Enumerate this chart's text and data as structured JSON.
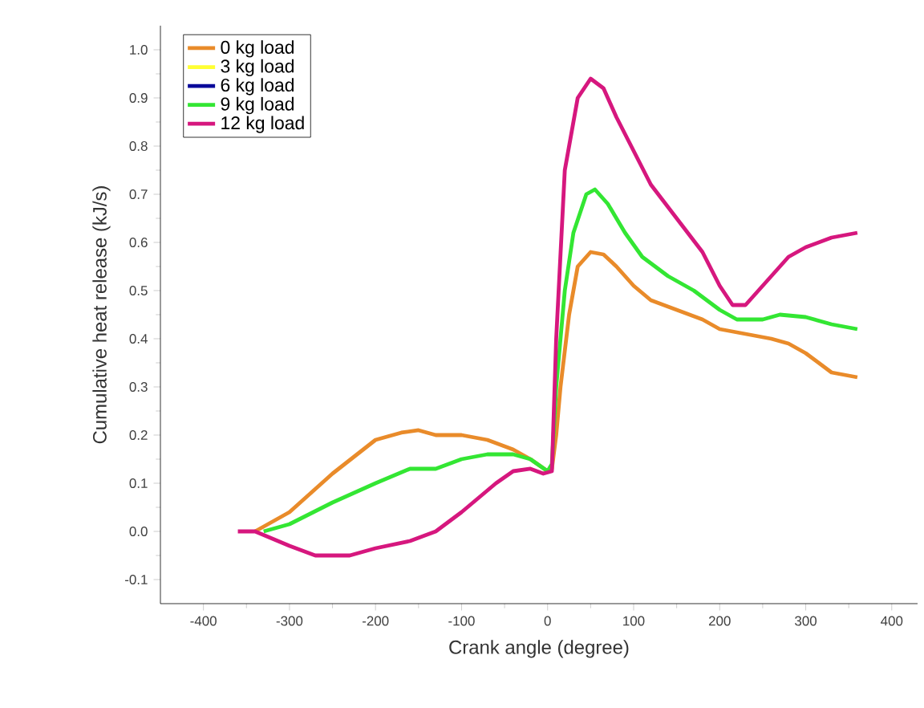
{
  "chart_data": {
    "type": "line",
    "xlabel": "Crank angle (degree)",
    "ylabel": "Cumulative heat release (kJ/s)",
    "xlim": [
      -450,
      430
    ],
    "ylim": [
      -0.15,
      1.05
    ],
    "xticks": [
      -400,
      -300,
      -200,
      -100,
      0,
      100,
      200,
      300,
      400
    ],
    "yticks": [
      {
        "value": -0.1,
        "label": "-0.1"
      },
      {
        "value": 0,
        "label": "0.0"
      },
      0.1,
      0.2,
      0.3,
      0.4,
      0.5,
      0.6,
      0.7,
      0.8,
      0.9,
      {
        "value": 1,
        "label": "1.0"
      }
    ],
    "grid": false,
    "legend": "top left",
    "marker": "none",
    "line_style": "solid",
    "series": [
      {
        "name": "0 kg load",
        "color": "#e98b2a",
        "x": [
          -340,
          -300,
          -250,
          -200,
          -170,
          -150,
          -130,
          -100,
          -70,
          -40,
          -20,
          0,
          5,
          10,
          15,
          25,
          35,
          50,
          65,
          80,
          100,
          120,
          150,
          180,
          200,
          230,
          260,
          280,
          300,
          330,
          360
        ],
        "values": [
          0,
          0.04,
          0.12,
          0.19,
          0.205,
          0.21,
          0.2,
          0.2,
          0.19,
          0.17,
          0.15,
          0.125,
          0.13,
          0.2,
          0.3,
          0.45,
          0.55,
          0.58,
          0.575,
          0.55,
          0.51,
          0.48,
          0.46,
          0.44,
          0.42,
          0.41,
          0.4,
          0.39,
          0.37,
          0.33,
          0.32
        ]
      },
      {
        "name": "3 kg load",
        "color": "#ffff33"
      },
      {
        "name": "6 kg load",
        "color": "#0a0a9a"
      },
      {
        "name": "9 kg load",
        "color": "#33e633",
        "x": [
          -330,
          -300,
          -250,
          -200,
          -160,
          -130,
          -100,
          -70,
          -40,
          -20,
          0,
          5,
          10,
          20,
          30,
          45,
          55,
          70,
          90,
          110,
          140,
          170,
          200,
          220,
          250,
          270,
          300,
          330,
          360
        ],
        "values": [
          0,
          0.015,
          0.06,
          0.1,
          0.13,
          0.13,
          0.15,
          0.16,
          0.16,
          0.15,
          0.125,
          0.14,
          0.3,
          0.5,
          0.62,
          0.7,
          0.71,
          0.68,
          0.62,
          0.57,
          0.53,
          0.5,
          0.46,
          0.44,
          0.44,
          0.45,
          0.445,
          0.43,
          0.42
        ]
      },
      {
        "name": "12 kg load",
        "color": "#d6177e",
        "x": [
          -360,
          -340,
          -300,
          -270,
          -230,
          -200,
          -160,
          -130,
          -100,
          -60,
          -40,
          -20,
          -5,
          5,
          10,
          20,
          35,
          50,
          65,
          80,
          100,
          120,
          150,
          180,
          200,
          215,
          230,
          250,
          280,
          300,
          330,
          360
        ],
        "values": [
          0,
          0,
          -0.03,
          -0.05,
          -0.05,
          -0.035,
          -0.02,
          0,
          0.04,
          0.1,
          0.125,
          0.13,
          0.12,
          0.125,
          0.4,
          0.75,
          0.9,
          0.94,
          0.92,
          0.86,
          0.79,
          0.72,
          0.65,
          0.58,
          0.51,
          0.47,
          0.47,
          0.51,
          0.57,
          0.59,
          0.61,
          0.62
        ]
      }
    ]
  }
}
